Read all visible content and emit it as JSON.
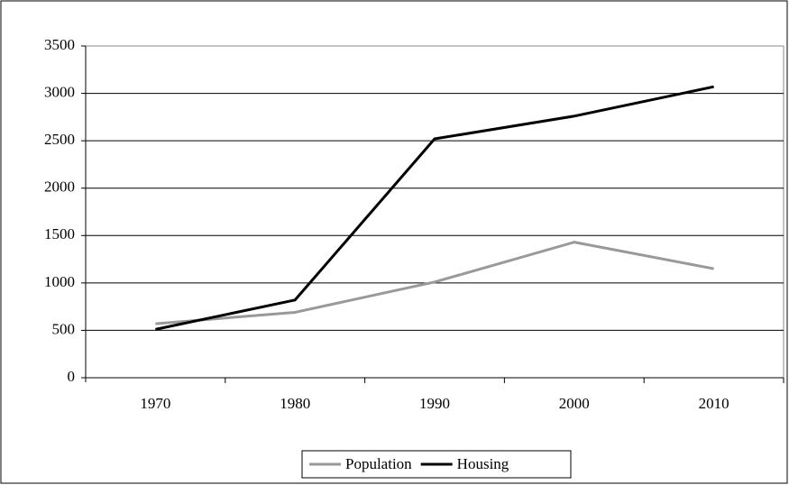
{
  "chart_data": {
    "type": "line",
    "categories": [
      "1970",
      "1980",
      "1990",
      "2000",
      "2010"
    ],
    "series": [
      {
        "name": "Population",
        "color": "#999999",
        "values": [
          570,
          690,
          1010,
          1430,
          1150
        ]
      },
      {
        "name": "Housing",
        "color": "#000000",
        "values": [
          510,
          820,
          2520,
          2760,
          3070
        ]
      }
    ],
    "ylim": [
      0,
      3500
    ],
    "yticks": [
      0,
      500,
      1000,
      1500,
      2000,
      2500,
      3000,
      3500
    ],
    "grid": true,
    "legend": "bottom"
  }
}
